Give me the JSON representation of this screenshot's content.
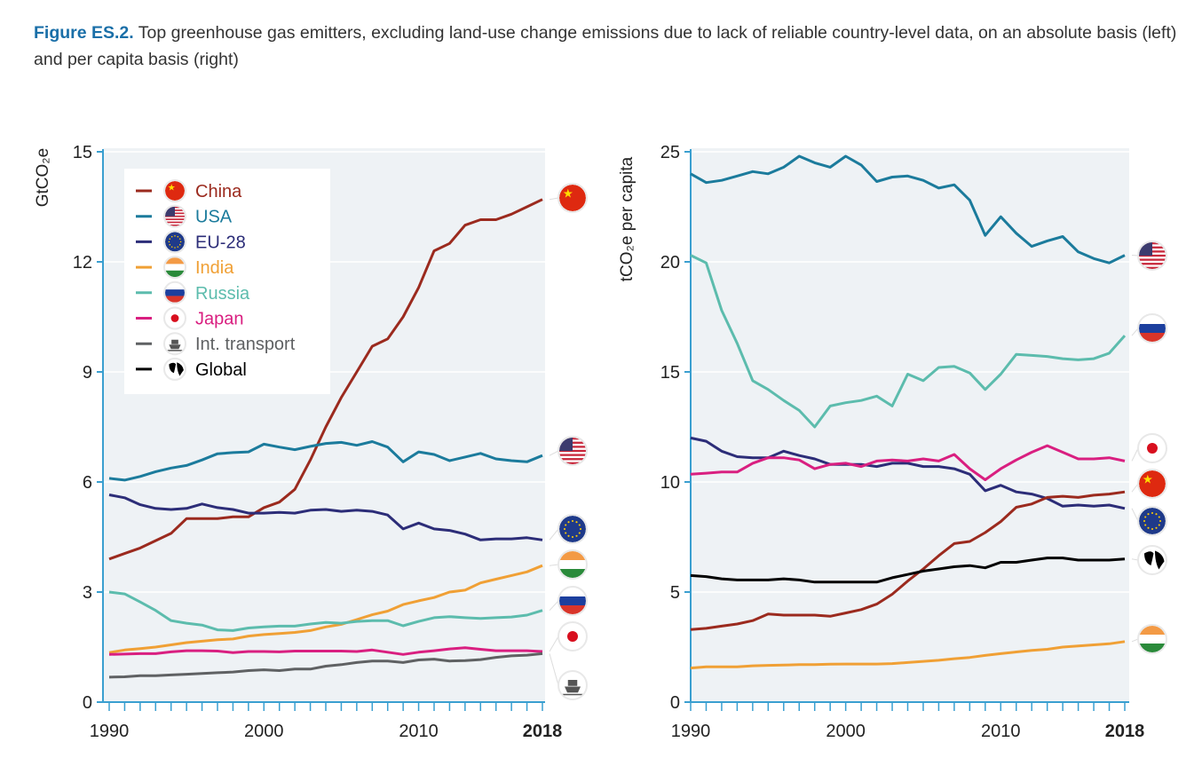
{
  "caption": {
    "label": "Figure ES.2.",
    "text": " Top greenhouse gas emitters, excluding land-use change emissions due to lack of reliable country-level data, on an absolute basis (left) and per capita basis (right)"
  },
  "chart_data": [
    {
      "type": "line",
      "ylabel": "GtCO₂e",
      "ylim": [
        0,
        15
      ],
      "yticks": [
        0,
        3,
        6,
        9,
        12,
        15
      ],
      "xlim": [
        1990,
        2018
      ],
      "xticks": [
        "1990",
        "2000",
        "2010",
        "2018"
      ],
      "grid": true,
      "legend": "top-left",
      "x": [
        1990,
        1991,
        1992,
        1993,
        1994,
        1995,
        1996,
        1997,
        1998,
        1999,
        2000,
        2001,
        2002,
        2003,
        2004,
        2005,
        2006,
        2007,
        2008,
        2009,
        2010,
        2011,
        2012,
        2013,
        2014,
        2015,
        2016,
        2017,
        2018
      ],
      "series": [
        {
          "name": "China",
          "color": "#9b2a1e",
          "flag": "china-flag",
          "values": [
            3.9,
            4.05,
            4.2,
            4.4,
            4.6,
            5.0,
            5.0,
            5.0,
            5.05,
            5.05,
            5.3,
            5.45,
            5.8,
            6.6,
            7.5,
            8.3,
            9.0,
            9.7,
            9.9,
            10.5,
            11.3,
            12.3,
            12.5,
            13.0,
            13.15,
            13.15,
            13.3,
            13.5,
            13.7
          ]
        },
        {
          "name": "USA",
          "color": "#1b7b9c",
          "flag": "usa-flag",
          "values": [
            6.1,
            6.05,
            6.15,
            6.28,
            6.38,
            6.45,
            6.6,
            6.77,
            6.8,
            6.82,
            7.03,
            6.95,
            6.88,
            6.97,
            7.05,
            7.08,
            7.0,
            7.1,
            6.95,
            6.55,
            6.82,
            6.75,
            6.58,
            6.68,
            6.78,
            6.63,
            6.58,
            6.55,
            6.72
          ]
        },
        {
          "name": "EU-28",
          "color": "#2c2d78",
          "flag": "eu-flag",
          "values": [
            5.65,
            5.57,
            5.38,
            5.28,
            5.25,
            5.28,
            5.4,
            5.3,
            5.25,
            5.15,
            5.15,
            5.17,
            5.15,
            5.23,
            5.25,
            5.2,
            5.23,
            5.2,
            5.1,
            4.72,
            4.88,
            4.72,
            4.68,
            4.58,
            4.42,
            4.45,
            4.45,
            4.48,
            4.42
          ]
        },
        {
          "name": "India",
          "color": "#f0a035",
          "flag": "india-flag",
          "values": [
            1.35,
            1.42,
            1.46,
            1.5,
            1.56,
            1.62,
            1.66,
            1.7,
            1.72,
            1.8,
            1.84,
            1.87,
            1.9,
            1.95,
            2.05,
            2.12,
            2.25,
            2.38,
            2.48,
            2.66,
            2.76,
            2.85,
            3.0,
            3.05,
            3.25,
            3.35,
            3.45,
            3.55,
            3.72
          ]
        },
        {
          "name": "Russia",
          "color": "#5cbcad",
          "flag": "russia-flag",
          "values": [
            3.0,
            2.95,
            2.73,
            2.5,
            2.22,
            2.15,
            2.1,
            1.97,
            1.95,
            2.02,
            2.05,
            2.07,
            2.07,
            2.13,
            2.17,
            2.15,
            2.2,
            2.22,
            2.22,
            2.08,
            2.2,
            2.3,
            2.33,
            2.3,
            2.28,
            2.3,
            2.32,
            2.37,
            2.5
          ]
        },
        {
          "name": "Japan",
          "color": "#d91f80",
          "flag": "japan-flag",
          "values": [
            1.3,
            1.31,
            1.32,
            1.32,
            1.37,
            1.4,
            1.4,
            1.39,
            1.35,
            1.38,
            1.38,
            1.37,
            1.39,
            1.39,
            1.39,
            1.39,
            1.38,
            1.42,
            1.36,
            1.3,
            1.36,
            1.4,
            1.45,
            1.48,
            1.44,
            1.4,
            1.4,
            1.4,
            1.38
          ]
        },
        {
          "name": "Int. transport",
          "color": "#5f6163",
          "flag": "ship",
          "values": [
            0.68,
            0.69,
            0.72,
            0.72,
            0.74,
            0.76,
            0.78,
            0.8,
            0.82,
            0.86,
            0.88,
            0.86,
            0.9,
            0.9,
            0.98,
            1.02,
            1.08,
            1.12,
            1.12,
            1.08,
            1.15,
            1.17,
            1.12,
            1.13,
            1.16,
            1.22,
            1.26,
            1.28,
            1.32
          ]
        }
      ],
      "legend_entries": [
        {
          "name": "China",
          "color": "#9b2a1e",
          "flag": "china-flag"
        },
        {
          "name": "USA",
          "color": "#1b7b9c",
          "flag": "usa-flag"
        },
        {
          "name": "EU-28",
          "color": "#2c2d78",
          "flag": "eu-flag"
        },
        {
          "name": "India",
          "color": "#f0a035",
          "flag": "india-flag"
        },
        {
          "name": "Russia",
          "color": "#5cbcad",
          "flag": "russia-flag"
        },
        {
          "name": "Japan",
          "color": "#d91f80",
          "flag": "japan-flag"
        },
        {
          "name": "Int. transport",
          "color": "#5f6163",
          "flag": "ship"
        },
        {
          "name": "Global",
          "color": "#000000",
          "flag": "globe"
        }
      ]
    },
    {
      "type": "line",
      "ylabel": "tCO₂e per capita",
      "ylim": [
        0,
        25
      ],
      "yticks": [
        0,
        5,
        10,
        15,
        20,
        25
      ],
      "xlim": [
        1990,
        2018
      ],
      "xticks": [
        "1990",
        "2000",
        "2010",
        "2018"
      ],
      "grid": true,
      "x": [
        1990,
        1991,
        1992,
        1993,
        1994,
        1995,
        1996,
        1997,
        1998,
        1999,
        2000,
        2001,
        2002,
        2003,
        2004,
        2005,
        2006,
        2007,
        2008,
        2009,
        2010,
        2011,
        2012,
        2013,
        2014,
        2015,
        2016,
        2017,
        2018
      ],
      "series": [
        {
          "name": "USA",
          "color": "#1b7b9c",
          "flag": "usa-flag",
          "values": [
            24.0,
            23.6,
            23.7,
            23.9,
            24.1,
            24.0,
            24.3,
            24.8,
            24.5,
            24.3,
            24.8,
            24.4,
            23.65,
            23.85,
            23.9,
            23.7,
            23.35,
            23.5,
            22.8,
            21.2,
            22.05,
            21.3,
            20.7,
            20.95,
            21.15,
            20.45,
            20.15,
            19.95,
            20.3
          ]
        },
        {
          "name": "Russia",
          "color": "#5cbcad",
          "flag": "russia-flag",
          "values": [
            20.3,
            19.95,
            17.8,
            16.3,
            14.6,
            14.2,
            13.7,
            13.25,
            12.5,
            13.45,
            13.6,
            13.7,
            13.9,
            13.45,
            14.9,
            14.6,
            15.2,
            15.25,
            14.95,
            14.2,
            14.9,
            15.8,
            15.75,
            15.7,
            15.6,
            15.55,
            15.6,
            15.85,
            16.65
          ]
        },
        {
          "name": "EU-28",
          "color": "#2c2d78",
          "flag": "eu-flag",
          "values": [
            12.0,
            11.85,
            11.4,
            11.15,
            11.1,
            11.1,
            11.4,
            11.2,
            11.05,
            10.8,
            10.8,
            10.8,
            10.7,
            10.85,
            10.85,
            10.7,
            10.7,
            10.6,
            10.35,
            9.6,
            9.85,
            9.55,
            9.45,
            9.25,
            8.9,
            8.95,
            8.9,
            8.95,
            8.8
          ]
        },
        {
          "name": "Japan",
          "color": "#d91f80",
          "flag": "japan-flag",
          "values": [
            10.35,
            10.4,
            10.45,
            10.45,
            10.85,
            11.1,
            11.1,
            11.0,
            10.6,
            10.8,
            10.85,
            10.7,
            10.95,
            11.0,
            10.95,
            11.05,
            10.95,
            11.25,
            10.6,
            10.1,
            10.6,
            11.0,
            11.35,
            11.65,
            11.35,
            11.05,
            11.05,
            11.1,
            10.95
          ]
        },
        {
          "name": "China",
          "color": "#9b2a1e",
          "flag": "china-flag",
          "values": [
            3.3,
            3.35,
            3.45,
            3.55,
            3.7,
            4.0,
            3.95,
            3.95,
            3.95,
            3.9,
            4.05,
            4.2,
            4.45,
            4.9,
            5.5,
            6.05,
            6.65,
            7.2,
            7.3,
            7.7,
            8.2,
            8.85,
            9.0,
            9.3,
            9.35,
            9.3,
            9.4,
            9.45,
            9.55
          ]
        },
        {
          "name": "Global",
          "color": "#000000",
          "flag": "globe",
          "values": [
            5.75,
            5.7,
            5.6,
            5.55,
            5.55,
            5.55,
            5.6,
            5.55,
            5.45,
            5.45,
            5.45,
            5.45,
            5.45,
            5.65,
            5.8,
            5.95,
            6.05,
            6.15,
            6.2,
            6.1,
            6.35,
            6.35,
            6.45,
            6.55,
            6.55,
            6.45,
            6.45,
            6.45,
            6.5
          ]
        },
        {
          "name": "India",
          "color": "#f0a035",
          "flag": "india-flag",
          "values": [
            1.55,
            1.6,
            1.6,
            1.6,
            1.65,
            1.67,
            1.68,
            1.7,
            1.7,
            1.72,
            1.73,
            1.73,
            1.73,
            1.75,
            1.8,
            1.85,
            1.9,
            1.97,
            2.03,
            2.12,
            2.2,
            2.28,
            2.35,
            2.4,
            2.5,
            2.55,
            2.6,
            2.65,
            2.75
          ]
        }
      ]
    }
  ]
}
